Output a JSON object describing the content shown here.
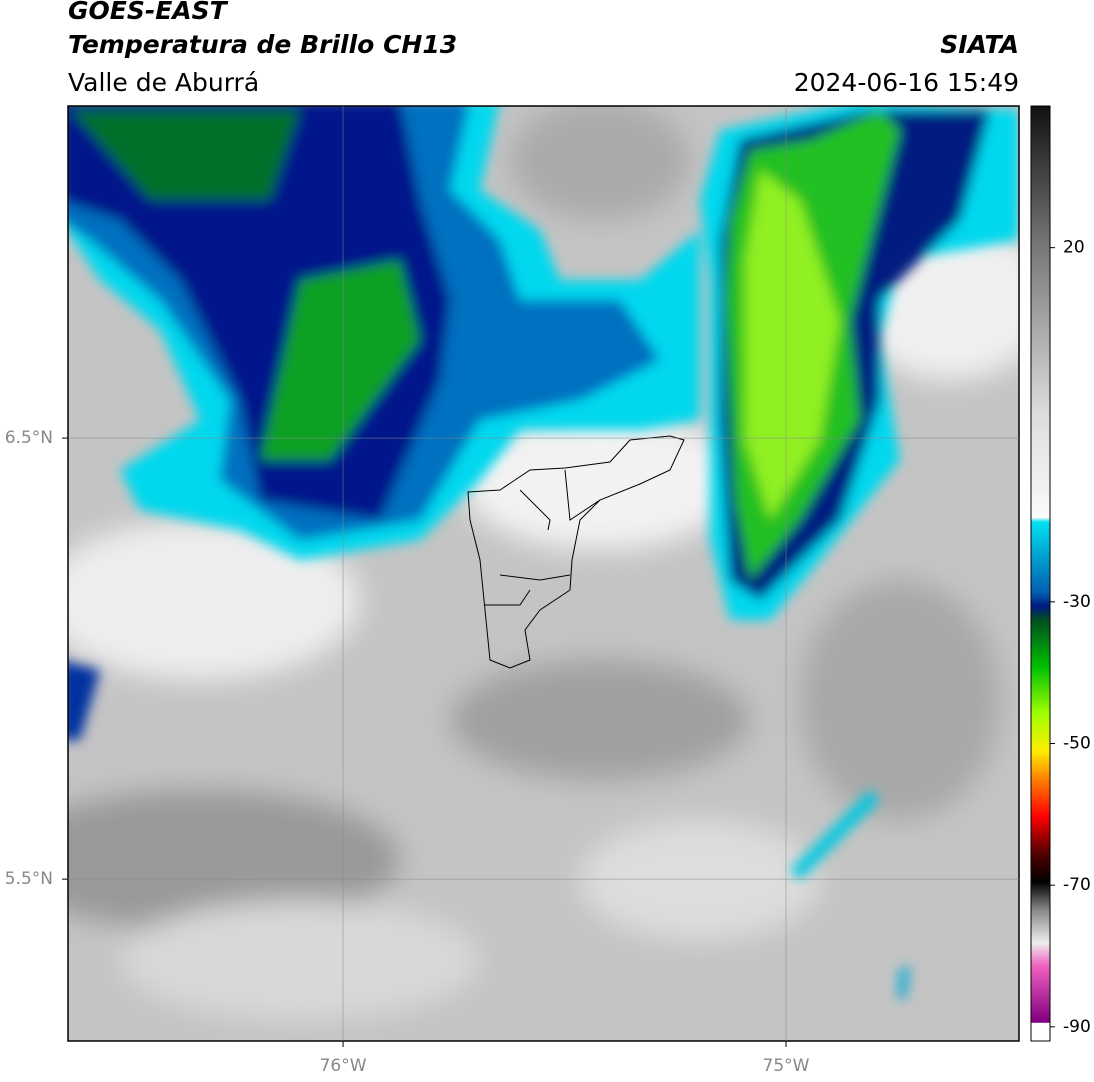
{
  "header": {
    "title": "GOES-EAST",
    "subtitle": "Temperatura de Brillo CH13",
    "region": "Valle de Aburrá",
    "source": "SIATA",
    "timestamp": "2024-06-16 15:49"
  },
  "map": {
    "lon_range": [
      -76.621,
      -74.474
    ],
    "lat_range": [
      5.133,
      7.253
    ],
    "lon_ticks": [
      {
        "value": -76,
        "label": "76°W"
      },
      {
        "value": -75,
        "label": "75°W"
      }
    ],
    "lat_ticks": [
      {
        "value": 6.5,
        "label": "6.5°N"
      },
      {
        "value": 5.5,
        "label": "5.5°N"
      }
    ]
  },
  "colorbar": {
    "range": [
      -92,
      40
    ],
    "ticks": [
      20,
      -30,
      -50,
      -70,
      -90
    ]
  }
}
